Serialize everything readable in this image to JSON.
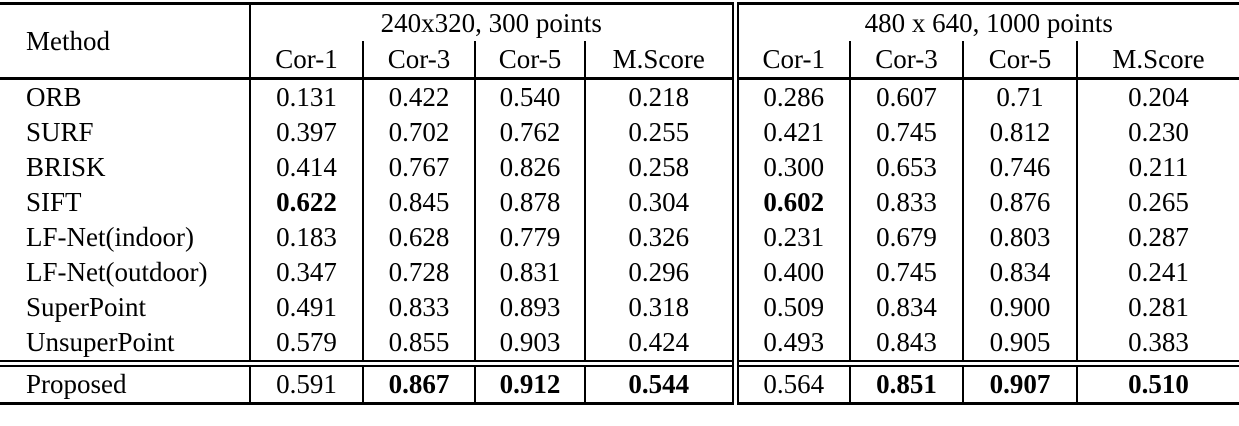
{
  "table": {
    "method_header": "Method",
    "groups": [
      {
        "title": "240x320, 300 points",
        "columns": [
          "Cor-1",
          "Cor-3",
          "Cor-5",
          "M.Score"
        ]
      },
      {
        "title": "480 x 640, 1000 points",
        "columns": [
          "Cor-1",
          "Cor-3",
          "Cor-5",
          "M.Score"
        ]
      }
    ],
    "rows": [
      {
        "method": "ORB",
        "values": [
          "0.131",
          "0.422",
          "0.540",
          "0.218",
          "0.286",
          "0.607",
          "0.71",
          "0.204"
        ],
        "bold_indices": []
      },
      {
        "method": "SURF",
        "values": [
          "0.397",
          "0.702",
          "0.762",
          "0.255",
          "0.421",
          "0.745",
          "0.812",
          "0.230"
        ],
        "bold_indices": []
      },
      {
        "method": "BRISK",
        "values": [
          "0.414",
          "0.767",
          "0.826",
          "0.258",
          "0.300",
          "0.653",
          "0.746",
          "0.211"
        ],
        "bold_indices": []
      },
      {
        "method": "SIFT",
        "values": [
          "0.622",
          "0.845",
          "0.878",
          "0.304",
          "0.602",
          "0.833",
          "0.876",
          "0.265"
        ],
        "bold_indices": [
          0,
          4
        ]
      },
      {
        "method": "LF-Net(indoor)",
        "values": [
          "0.183",
          "0.628",
          "0.779",
          "0.326",
          "0.231",
          "0.679",
          "0.803",
          "0.287"
        ],
        "bold_indices": []
      },
      {
        "method": "LF-Net(outdoor)",
        "values": [
          "0.347",
          "0.728",
          "0.831",
          "0.296",
          "0.400",
          "0.745",
          "0.834",
          "0.241"
        ],
        "bold_indices": []
      },
      {
        "method": "SuperPoint",
        "values": [
          "0.491",
          "0.833",
          "0.893",
          "0.318",
          "0.509",
          "0.834",
          "0.900",
          "0.281"
        ],
        "bold_indices": []
      },
      {
        "method": "UnsuperPoint",
        "values": [
          "0.579",
          "0.855",
          "0.903",
          "0.424",
          "0.493",
          "0.843",
          "0.905",
          "0.383"
        ],
        "bold_indices": []
      },
      {
        "method": "Proposed",
        "values": [
          "0.591",
          "0.867",
          "0.912",
          "0.544",
          "0.564",
          "0.851",
          "0.907",
          "0.510"
        ],
        "bold_indices": [
          1,
          2,
          3,
          5,
          6,
          7
        ],
        "separated": true
      }
    ]
  },
  "colors": {
    "text": "#000000",
    "background": "#ffffff",
    "rule": "#000000"
  }
}
